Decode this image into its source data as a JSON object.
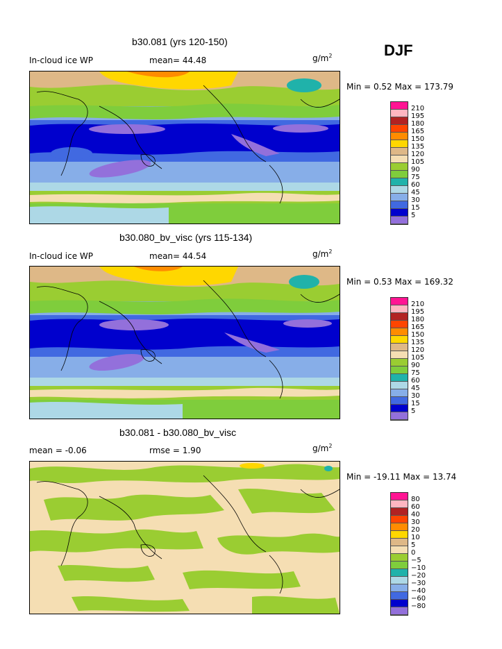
{
  "season": "DJF",
  "unit_base": "g/m",
  "unit_exp": "2",
  "panels": [
    {
      "title": "b30.081 (yrs 120-150)",
      "left_label": "In-cloud ice WP",
      "stat_label": "mean=  44.48",
      "minmax": "Min =   0.52 Max = 173.79",
      "legend": "abs"
    },
    {
      "title": "b30.080_bv_visc (yrs 115-134)",
      "left_label": "In-cloud ice WP",
      "stat_label": "mean=  44.54",
      "minmax": "Min =   0.53 Max = 169.32",
      "legend": "abs"
    },
    {
      "title": "b30.081 - b30.080_bv_visc",
      "left_label": "mean =   -0.06",
      "stat_label": "rmse =   1.90",
      "minmax": "Min = -19.11 Max =  13.74",
      "legend": "diff"
    }
  ],
  "legends": {
    "abs": {
      "colors": [
        "#ff1493",
        "#ffb6c1",
        "#b22222",
        "#ff4500",
        "#ff8c00",
        "#ffd700",
        "#deb887",
        "#f5deb3",
        "#9acd32",
        "#7fcd3c",
        "#20b2aa",
        "#add8e6",
        "#87aee8",
        "#4169e1",
        "#0000cd",
        "#9370db"
      ],
      "labels": [
        "210",
        "195",
        "180",
        "165",
        "150",
        "135",
        "120",
        "105",
        "90",
        "75",
        "60",
        "45",
        "30",
        "15",
        "5"
      ]
    },
    "diff": {
      "colors": [
        "#ff1493",
        "#ffb6c1",
        "#b22222",
        "#ff4500",
        "#ff8c00",
        "#ffd700",
        "#deb887",
        "#f5deb3",
        "#9acd32",
        "#7fcd3c",
        "#20b2aa",
        "#add8e6",
        "#87aee8",
        "#4169e1",
        "#0000cd",
        "#9370db"
      ],
      "labels": [
        "80",
        "60",
        "40",
        "30",
        "20",
        "10",
        "5",
        "0",
        "−5",
        "−10",
        "−20",
        "−30",
        "−40",
        "−60",
        "−80"
      ]
    }
  }
}
